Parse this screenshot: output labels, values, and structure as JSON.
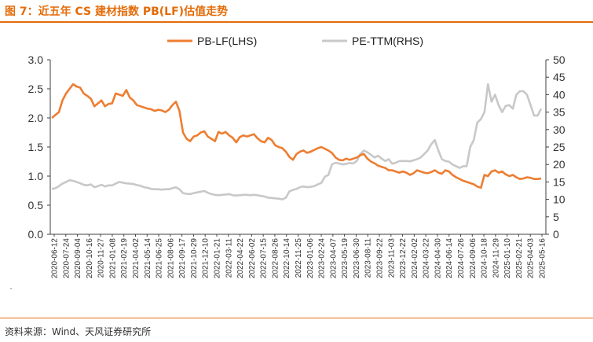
{
  "header": {
    "title": "图 7：近五年 CS 建材指数 PB(LF)估值走势"
  },
  "footer": {
    "source": "资料来源：Wind、天风证券研究所",
    "stray_mark": "`"
  },
  "colors": {
    "accent": "#e36c0a",
    "pb": "#ed7d31",
    "pe": "#c8c8c8",
    "axis": "#404040"
  },
  "chart_data": {
    "type": "line",
    "title": "",
    "legend": {
      "position": "top",
      "entries": [
        "PB-LF(LHS)",
        "PE-TTM(RHS)"
      ]
    },
    "y_left": {
      "min": 0,
      "max": 3.0,
      "ticks": [
        "0.0",
        "0.5",
        "1.0",
        "1.5",
        "2.0",
        "2.5",
        "3.0"
      ]
    },
    "y_right": {
      "min": 0,
      "max": 50,
      "ticks": [
        "0",
        "5",
        "10",
        "15",
        "20",
        "25",
        "30",
        "35",
        "40",
        "45",
        "50"
      ]
    },
    "grid": false,
    "x_ticks": [
      "2020-06-12",
      "2020-07-24",
      "2020-09-04",
      "2020-10-16",
      "2020-11-27",
      "2021-01-08",
      "2021-02-19",
      "2021-04-02",
      "2021-05-14",
      "2021-06-25",
      "2021-08-06",
      "2021-09-17",
      "2021-10-29",
      "2021-12-10",
      "2022-01-21",
      "2022-03-11",
      "2022-04-22",
      "2022-06-02",
      "2022-07-15",
      "2022-08-26",
      "2022-10-14",
      "2022-11-25",
      "2023-01-06",
      "2023-02-24",
      "2023-04-07",
      "2023-05-19",
      "2023-06-30",
      "2023-08-11",
      "2023-09-22",
      "2023-11-03",
      "2023-12-22",
      "2024-02-02",
      "2024-03-22",
      "2024-04-30",
      "2024-06-14",
      "2024-07-26",
      "2024-09-06",
      "2024-10-18",
      "2024-11-29",
      "2025-01-10",
      "2025-02-21",
      "2025-04-03",
      "2025-05-16"
    ],
    "series": [
      {
        "name": "PB-LF(LHS)",
        "axis": "left",
        "values": [
          2.0,
          2.05,
          2.1,
          2.3,
          2.42,
          2.5,
          2.58,
          2.54,
          2.52,
          2.42,
          2.38,
          2.33,
          2.2,
          2.25,
          2.3,
          2.2,
          2.24,
          2.25,
          2.42,
          2.4,
          2.38,
          2.48,
          2.35,
          2.3,
          2.22,
          2.2,
          2.18,
          2.16,
          2.15,
          2.12,
          2.14,
          2.13,
          2.1,
          2.14,
          2.22,
          2.28,
          2.12,
          1.75,
          1.64,
          1.6,
          1.68,
          1.7,
          1.75,
          1.77,
          1.68,
          1.64,
          1.6,
          1.76,
          1.73,
          1.76,
          1.7,
          1.66,
          1.58,
          1.67,
          1.7,
          1.68,
          1.7,
          1.72,
          1.65,
          1.6,
          1.58,
          1.66,
          1.62,
          1.53,
          1.5,
          1.48,
          1.42,
          1.33,
          1.28,
          1.38,
          1.42,
          1.44,
          1.4,
          1.42,
          1.45,
          1.48,
          1.5,
          1.47,
          1.44,
          1.4,
          1.32,
          1.28,
          1.27,
          1.3,
          1.28,
          1.3,
          1.32,
          1.36,
          1.38,
          1.3,
          1.25,
          1.22,
          1.18,
          1.16,
          1.14,
          1.1,
          1.1,
          1.08,
          1.06,
          1.08,
          1.06,
          1.02,
          1.05,
          1.1,
          1.08,
          1.06,
          1.05,
          1.07,
          1.1,
          1.06,
          1.04,
          1.1,
          1.08,
          1.02,
          0.98,
          0.95,
          0.92,
          0.9,
          0.88,
          0.86,
          0.82,
          0.8,
          1.02,
          1.0,
          1.08,
          1.1,
          1.06,
          1.08,
          1.03,
          1.0,
          1.02,
          0.98,
          0.95,
          0.96,
          0.98,
          0.97,
          0.95,
          0.95,
          0.96
        ]
      },
      {
        "name": "PE-TTM(RHS)",
        "axis": "right",
        "values": [
          13,
          13.2,
          13.8,
          14.5,
          15,
          15.5,
          15.3,
          15,
          14.6,
          14.2,
          14,
          14.3,
          13.5,
          13.8,
          14.2,
          13.7,
          14,
          14,
          14.5,
          15,
          14.8,
          14.6,
          14.5,
          14.4,
          14.1,
          13.9,
          13.5,
          13.3,
          13,
          12.9,
          12.9,
          12.8,
          12.9,
          12.9,
          13.2,
          13.5,
          12.9,
          11.8,
          11.6,
          11.5,
          11.8,
          12,
          12.2,
          12.4,
          11.9,
          11.5,
          11.3,
          11.2,
          11.3,
          11.4,
          11.5,
          11.2,
          11.1,
          11.2,
          11.3,
          11.3,
          11.2,
          11.3,
          11.2,
          11,
          10.8,
          10.5,
          10.4,
          10.3,
          10.2,
          10.0,
          10.5,
          12.3,
          12.7,
          13,
          13.5,
          13.7,
          13.5,
          13.6,
          13.8,
          14.3,
          14.7,
          16.5,
          17,
          20,
          20.5,
          20.3,
          20,
          20.2,
          20.4,
          20.3,
          21,
          23,
          24,
          23.5,
          22.8,
          22,
          22.5,
          21.7,
          21,
          21.5,
          20.2,
          20.5,
          21,
          21,
          21,
          20.9,
          21.2,
          21.5,
          22,
          23,
          24,
          25.8,
          27,
          24,
          21.5,
          21,
          20.8,
          20,
          19.5,
          19,
          19.5,
          19.5,
          25,
          27,
          32,
          33,
          35,
          43,
          38,
          40,
          37,
          35,
          36.8,
          37,
          36,
          40,
          41,
          41,
          40,
          37,
          34,
          34,
          36
        ]
      }
    ]
  }
}
